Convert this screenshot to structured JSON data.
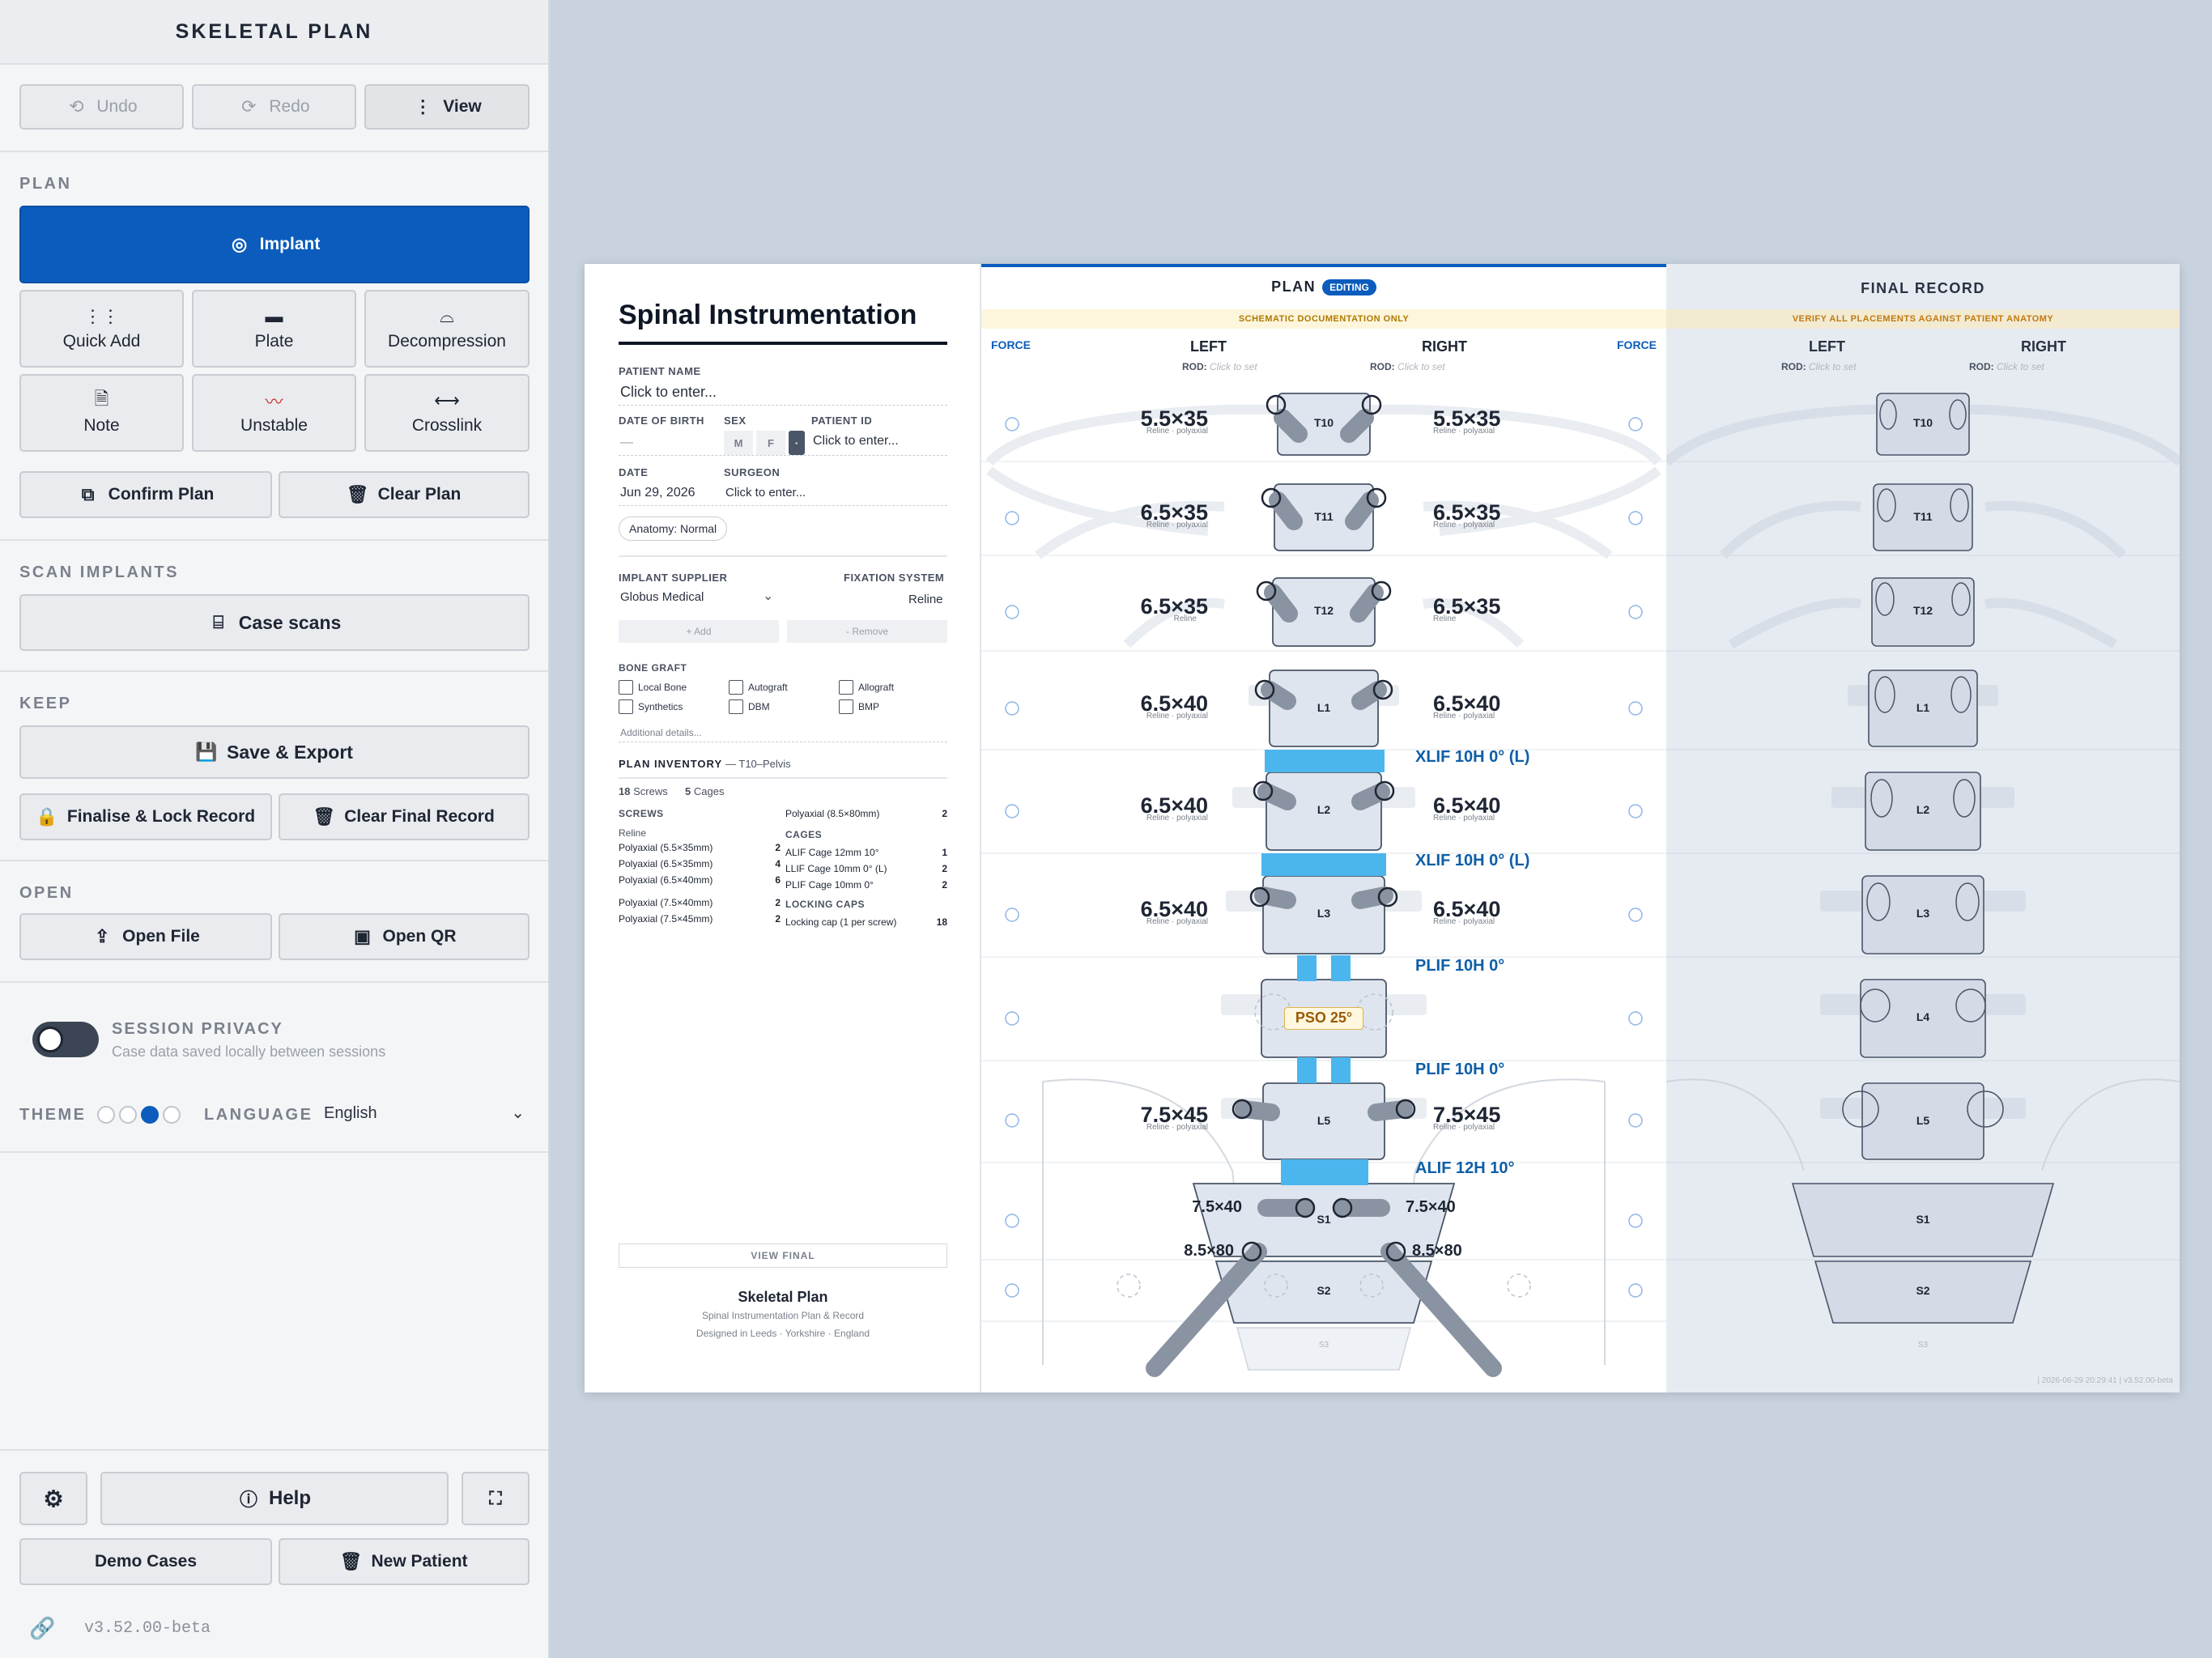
{
  "app": {
    "title": "SKELETAL PLAN",
    "version": "v3.52.00-beta"
  },
  "toolbar": {
    "undo": "Undo",
    "redo": "Redo",
    "view": "View"
  },
  "plan_section": {
    "title": "PLAN",
    "implant": "Implant",
    "quick_add": "Quick Add",
    "plate": "Plate",
    "decompression": "Decompression",
    "note": "Note",
    "unstable": "Unstable",
    "crosslink": "Crosslink",
    "confirm": "Confirm Plan",
    "clear": "Clear Plan"
  },
  "scan_section": {
    "title": "SCAN IMPLANTS",
    "case_scans": "Case scans"
  },
  "keep_section": {
    "title": "KEEP",
    "save_export": "Save & Export",
    "finalise": "Finalise & Lock Record",
    "clear_final": "Clear Final Record"
  },
  "open_section": {
    "title": "OPEN",
    "open_file": "Open File",
    "open_qr": "Open QR"
  },
  "privacy": {
    "title": "SESSION PRIVACY",
    "subtitle": "Case data saved locally between sessions"
  },
  "theme": {
    "label": "THEME",
    "language_label": "LANGUAGE",
    "language": "English"
  },
  "footer": {
    "help": "Help",
    "demo": "Demo Cases",
    "new_patient": "New Patient"
  },
  "doc": {
    "title": "Spinal Instrumentation",
    "patient_name_label": "PATIENT NAME",
    "patient_name_ph": "Click to enter...",
    "dob_label": "DATE OF BIRTH",
    "dob_value": "—",
    "sex_label": "SEX",
    "sex_m": "M",
    "sex_f": "F",
    "sex_other": "·",
    "pid_label": "PATIENT ID",
    "pid_ph": "Click to enter...",
    "date_label": "DATE",
    "date_value": "Jun 29, 2026",
    "surgeon_label": "SURGEON",
    "surgeon_ph": "Click to enter...",
    "anatomy": "Anatomy: Normal",
    "supplier_label": "IMPLANT SUPPLIER",
    "supplier": "Globus Medical",
    "fixation_label": "FIXATION SYSTEM",
    "fixation": "Reline",
    "add": "+ Add",
    "remove": "- Remove",
    "bone_graft_label": "BONE GRAFT",
    "graft": [
      "Local Bone",
      "Autograft",
      "Allograft",
      "Synthetics",
      "DBM",
      "BMP"
    ],
    "additional": "Additional details...",
    "inventory_label": "PLAN INVENTORY",
    "inventory_range": "— T10–Pelvis",
    "screws_count": "18",
    "screws_word": "Screws",
    "cages_count": "5",
    "cages_word": "Cages",
    "screws_label": "SCREWS",
    "screws_brand": "Reline",
    "screws": [
      {
        "n": "Polyaxial (5.5×35mm)",
        "q": "2"
      },
      {
        "n": "Polyaxial (6.5×35mm)",
        "q": "4"
      },
      {
        "n": "Polyaxial (6.5×40mm)",
        "q": "6"
      },
      {
        "n": "Polyaxial (7.5×40mm)",
        "q": "2"
      },
      {
        "n": "Polyaxial (7.5×45mm)",
        "q": "2"
      }
    ],
    "pelvic": {
      "n": "Polyaxial (8.5×80mm)",
      "q": "2"
    },
    "cages_label": "CAGES",
    "cages": [
      {
        "n": "ALIF Cage 12mm 10°",
        "q": "1"
      },
      {
        "n": "LLIF Cage 10mm 0° (L)",
        "q": "2"
      },
      {
        "n": "PLIF Cage 10mm 0°",
        "q": "2"
      }
    ],
    "caps_label": "LOCKING CAPS",
    "caps": {
      "n": "Locking cap (1 per screw)",
      "q": "18"
    },
    "view_final": "VIEW FINAL",
    "footer_title": "Skeletal Plan",
    "footer_sub": "Spinal Instrumentation Plan & Record",
    "footer_loc": "Designed in Leeds · Yorkshire · England"
  },
  "plan": {
    "title": "PLAN",
    "badge": "EDITING",
    "banner": "SCHEMATIC DOCUMENTATION ONLY",
    "force": "FORCE",
    "left": "LEFT",
    "right": "RIGHT",
    "rod": "ROD:",
    "rod_ph": "Click to set",
    "levels": [
      "T10",
      "T11",
      "T12",
      "L1",
      "L2",
      "L3",
      "L4",
      "L5",
      "S1",
      "S2",
      "S3"
    ],
    "screws_left": [
      "5.5×35",
      "6.5×35",
      "6.5×35",
      "6.5×40",
      "6.5×40",
      "6.5×40",
      "",
      "7.5×45"
    ],
    "screws_right": [
      "5.5×35",
      "6.5×35",
      "6.5×35",
      "6.5×40",
      "6.5×40",
      "6.5×40",
      "",
      "7.5×45"
    ],
    "screw_sub": "Reline · polyaxial",
    "screw_sub_short": "Reline",
    "s1_left": "7.5×40",
    "s1_right": "7.5×40",
    "s2_left": "8.5×80",
    "s2_right": "8.5×80",
    "cages": [
      "XLIF 10H 0° (L)",
      "XLIF 10H 0° (L)",
      "PLIF 10H 0°",
      "PLIF 10H 0°",
      "ALIF 12H 10°"
    ],
    "pso": "PSO 25°"
  },
  "final": {
    "title": "FINAL RECORD",
    "banner": "VERIFY ALL PLACEMENTS AGAINST PATIENT ANATOMY",
    "left": "LEFT",
    "right": "RIGHT",
    "rod": "ROD:",
    "rod_ph": "Click to set",
    "stamp": "| 2026-06-29 20:29:41 | v3.52.00-beta"
  },
  "colors": {
    "accent": "#0b5cbd",
    "cage": "#4bb6ee",
    "link": "#0e5ea8",
    "banner": "#fdf6dc"
  }
}
